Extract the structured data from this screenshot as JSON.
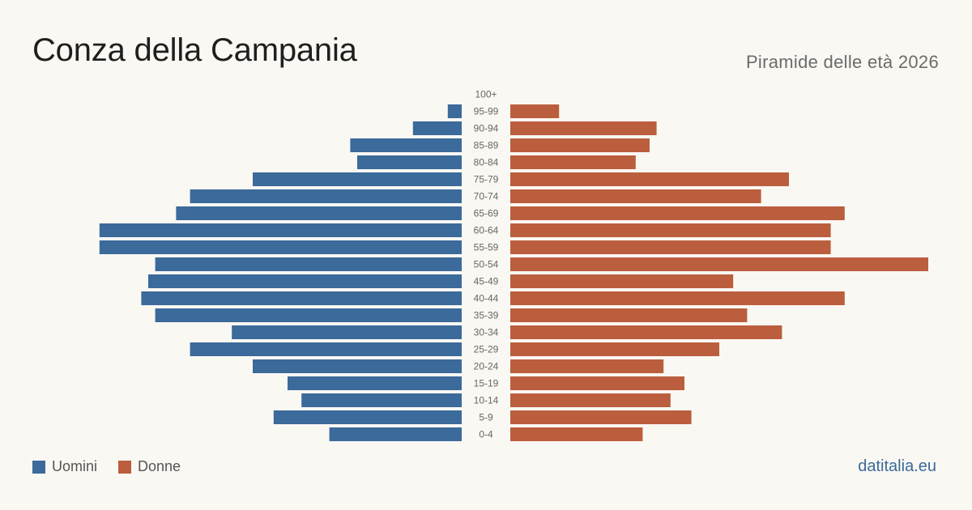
{
  "header": {
    "title": "Conza della Campania",
    "subtitle": "Piramide delle età 2026"
  },
  "legend": {
    "men_label": "Uomini",
    "women_label": "Donne"
  },
  "brand": "datitalia.eu",
  "colors": {
    "men": "#3b6a9b",
    "women": "#bb5e3d",
    "background": "#faf8f3",
    "tick_text": "#666666"
  },
  "chart_data": {
    "type": "bar",
    "orientation": "horizontal-pyramid",
    "categories": [
      "100+",
      "95-99",
      "90-94",
      "85-89",
      "80-84",
      "75-79",
      "70-74",
      "65-69",
      "60-64",
      "55-59",
      "50-54",
      "45-49",
      "40-44",
      "35-39",
      "30-34",
      "25-29",
      "20-24",
      "15-19",
      "10-14",
      "5-9",
      "0-4"
    ],
    "series": [
      {
        "name": "Uomini",
        "values": [
          0,
          2,
          7,
          16,
          15,
          30,
          39,
          41,
          52,
          52,
          44,
          45,
          46,
          44,
          33,
          39,
          30,
          25,
          23,
          27,
          19
        ]
      },
      {
        "name": "Donne",
        "values": [
          0,
          7,
          21,
          20,
          18,
          40,
          36,
          48,
          46,
          46,
          60,
          32,
          48,
          34,
          39,
          30,
          22,
          25,
          23,
          26,
          19
        ]
      }
    ],
    "xlim": [
      0,
      60
    ],
    "grid": false,
    "legend_position": "bottom-left"
  }
}
